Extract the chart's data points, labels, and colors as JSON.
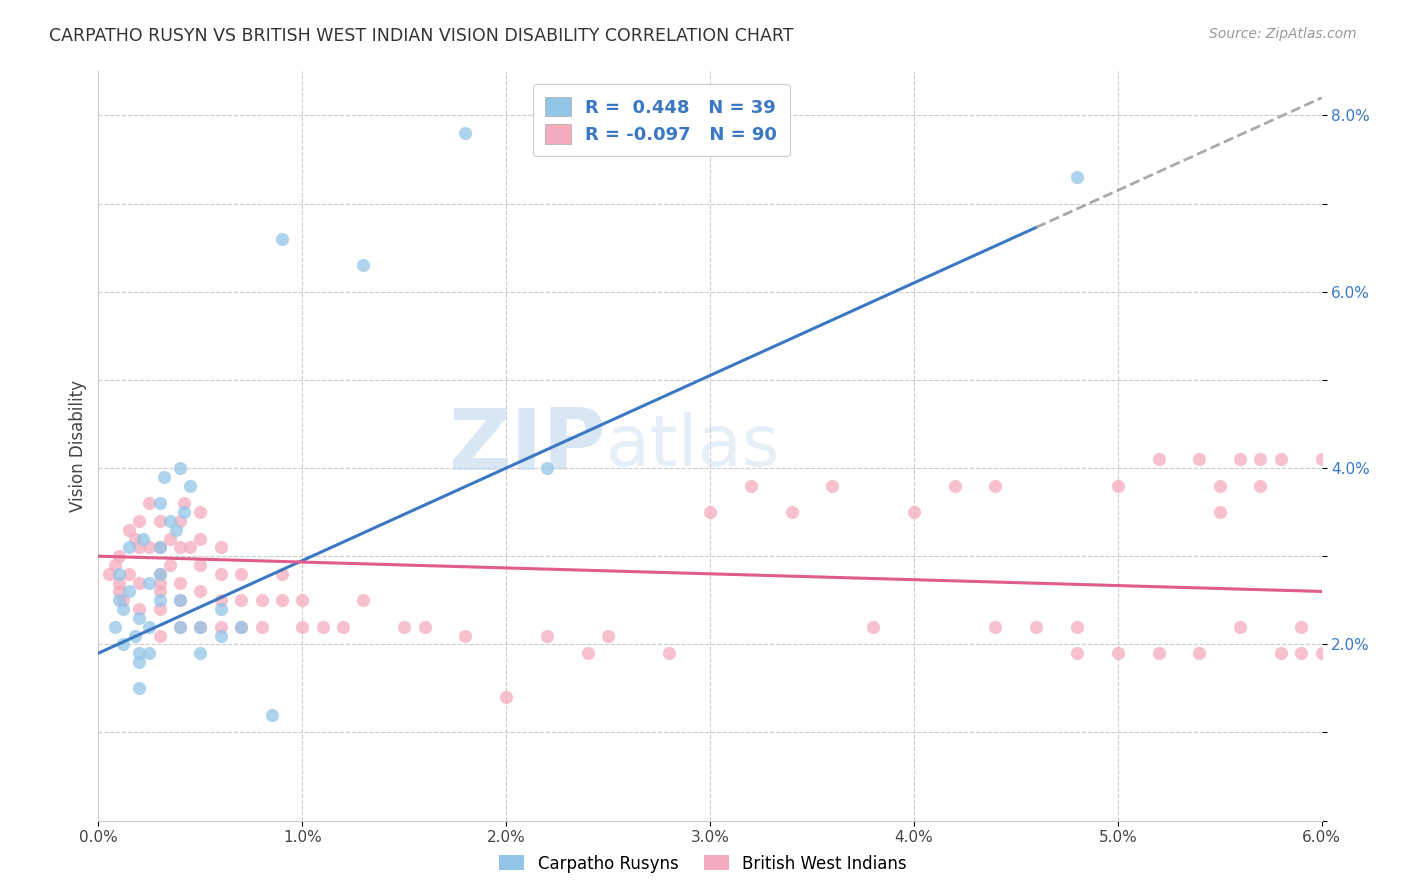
{
  "title": "CARPATHO RUSYN VS BRITISH WEST INDIAN VISION DISABILITY CORRELATION CHART",
  "source": "Source: ZipAtlas.com",
  "ylabel": "Vision Disability",
  "xlim": [
    0.0,
    0.06
  ],
  "ylim": [
    0.0,
    0.085
  ],
  "color_blue": "#92C5E8",
  "color_pink": "#F4ABBE",
  "color_line_blue": "#3B78C3",
  "color_line_pink": "#E05C8A",
  "watermark_zip": "ZIP",
  "watermark_atlas": "atlas",
  "background_color": "#FFFFFF",
  "cr_line_x0": 0.0,
  "cr_line_y0": 0.019,
  "cr_line_x1": 0.06,
  "cr_line_y1": 0.082,
  "bwi_line_x0": 0.0,
  "bwi_line_y0": 0.03,
  "bwi_line_x1": 0.06,
  "bwi_line_y1": 0.026,
  "carpatho_rusyn_x": [
    0.0008,
    0.001,
    0.001,
    0.0012,
    0.0012,
    0.0015,
    0.0015,
    0.0018,
    0.002,
    0.002,
    0.002,
    0.002,
    0.0022,
    0.0025,
    0.0025,
    0.0025,
    0.003,
    0.003,
    0.003,
    0.003,
    0.0032,
    0.0035,
    0.0038,
    0.004,
    0.004,
    0.004,
    0.0042,
    0.0045,
    0.005,
    0.005,
    0.006,
    0.006,
    0.007,
    0.0085,
    0.009,
    0.013,
    0.018,
    0.022,
    0.048
  ],
  "carpatho_rusyn_y": [
    0.022,
    0.028,
    0.025,
    0.024,
    0.02,
    0.031,
    0.026,
    0.021,
    0.023,
    0.018,
    0.019,
    0.015,
    0.032,
    0.027,
    0.022,
    0.019,
    0.031,
    0.036,
    0.028,
    0.025,
    0.039,
    0.034,
    0.033,
    0.04,
    0.025,
    0.022,
    0.035,
    0.038,
    0.022,
    0.019,
    0.024,
    0.021,
    0.022,
    0.012,
    0.066,
    0.063,
    0.078,
    0.04,
    0.073
  ],
  "british_west_indian_x": [
    0.0005,
    0.0008,
    0.001,
    0.001,
    0.001,
    0.0012,
    0.0015,
    0.0015,
    0.0018,
    0.002,
    0.002,
    0.002,
    0.002,
    0.0025,
    0.0025,
    0.003,
    0.003,
    0.003,
    0.003,
    0.003,
    0.003,
    0.003,
    0.0035,
    0.0035,
    0.004,
    0.004,
    0.004,
    0.004,
    0.004,
    0.0042,
    0.0045,
    0.005,
    0.005,
    0.005,
    0.005,
    0.005,
    0.006,
    0.006,
    0.006,
    0.006,
    0.007,
    0.007,
    0.007,
    0.008,
    0.008,
    0.009,
    0.009,
    0.01,
    0.01,
    0.011,
    0.012,
    0.013,
    0.015,
    0.016,
    0.018,
    0.02,
    0.022,
    0.024,
    0.025,
    0.028,
    0.03,
    0.032,
    0.034,
    0.036,
    0.038,
    0.04,
    0.042,
    0.044,
    0.048,
    0.05,
    0.052,
    0.054,
    0.055,
    0.056,
    0.057,
    0.058,
    0.059,
    0.06,
    0.044,
    0.046,
    0.048,
    0.05,
    0.052,
    0.054,
    0.055,
    0.056,
    0.057,
    0.058,
    0.059,
    0.06
  ],
  "british_west_indian_y": [
    0.028,
    0.029,
    0.026,
    0.027,
    0.03,
    0.025,
    0.028,
    0.033,
    0.032,
    0.027,
    0.024,
    0.031,
    0.034,
    0.031,
    0.036,
    0.026,
    0.028,
    0.031,
    0.034,
    0.027,
    0.024,
    0.021,
    0.029,
    0.032,
    0.027,
    0.031,
    0.034,
    0.025,
    0.022,
    0.036,
    0.031,
    0.026,
    0.029,
    0.032,
    0.035,
    0.022,
    0.025,
    0.028,
    0.031,
    0.022,
    0.025,
    0.028,
    0.022,
    0.025,
    0.022,
    0.025,
    0.028,
    0.022,
    0.025,
    0.022,
    0.022,
    0.025,
    0.022,
    0.022,
    0.021,
    0.014,
    0.021,
    0.019,
    0.021,
    0.019,
    0.035,
    0.038,
    0.035,
    0.038,
    0.022,
    0.035,
    0.038,
    0.022,
    0.019,
    0.019,
    0.019,
    0.019,
    0.035,
    0.041,
    0.041,
    0.019,
    0.019,
    0.041,
    0.038,
    0.022,
    0.022,
    0.038,
    0.041,
    0.041,
    0.038,
    0.022,
    0.038,
    0.041,
    0.022,
    0.019
  ]
}
